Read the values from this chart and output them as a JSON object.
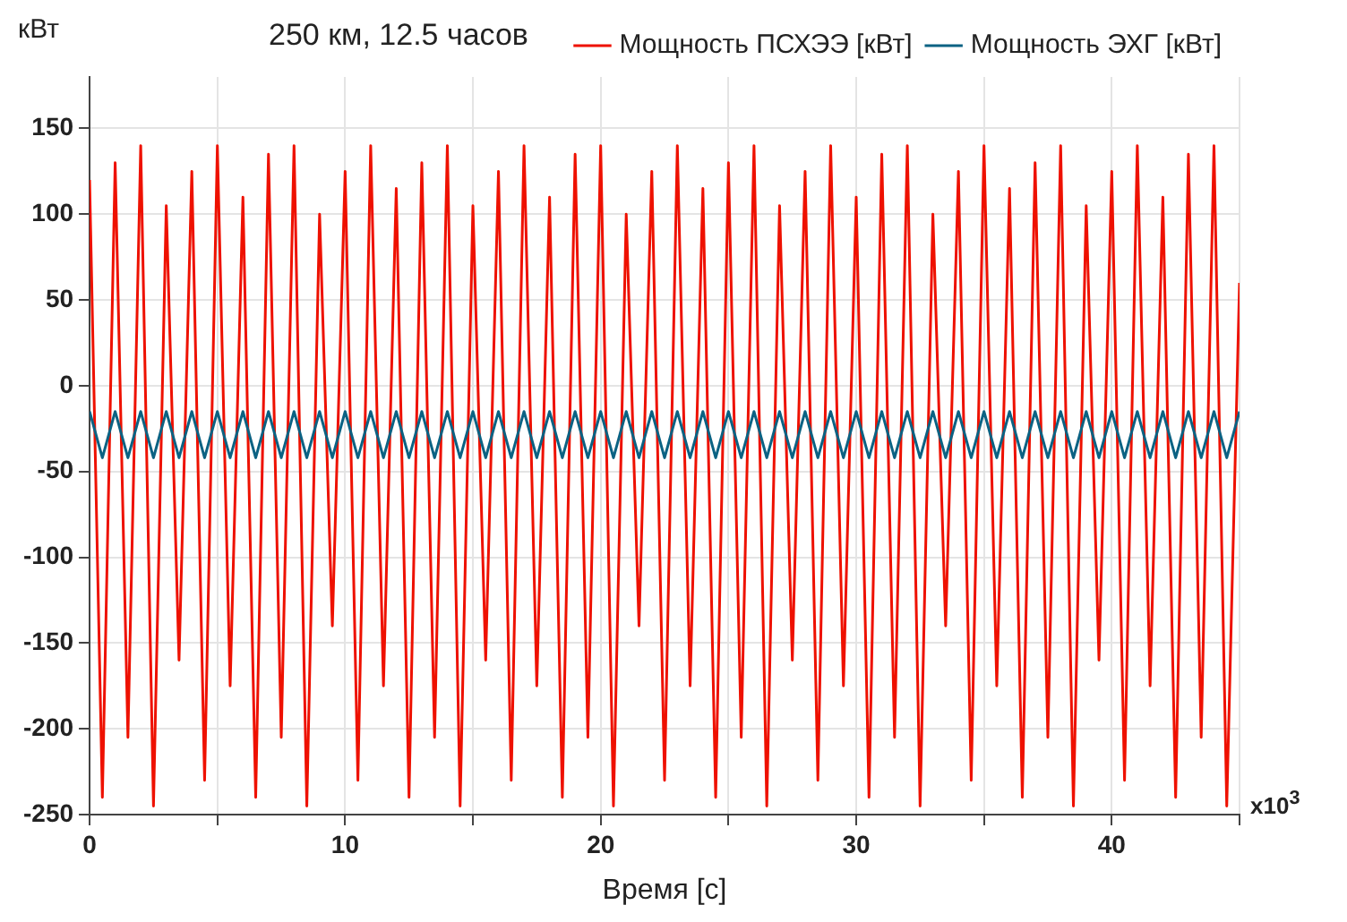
{
  "chart_data": {
    "type": "line",
    "title": "250 км, 12.5 часов",
    "xlabel": "Время [с]",
    "ylabel": "кВт",
    "annotations": [
      "x10$^{3}$"
    ],
    "xlim": [
      0,
      45
    ],
    "xticks": [
      0,
      {
        "value": 5,
        "label": null
      },
      10,
      {
        "value": 15,
        "label": null
      },
      20,
      {
        "value": 25,
        "label": null
      },
      30,
      {
        "value": 35,
        "label": null
      },
      40,
      {
        "value": 45,
        "label": null
      }
    ],
    "ylim": [
      -250,
      180
    ],
    "yticks": [
      -250,
      -200,
      -150,
      -100,
      -50,
      0,
      50,
      100,
      150
    ],
    "grid": true,
    "legend": "top right",
    "marker": "none",
    "line_style": "solid",
    "series": [
      {
        "name": "Мощность ПСХЭЭ [кВт]",
        "color": "#ee1100",
        "x": [
          0,
          0.5,
          1,
          1.5,
          2,
          2.5,
          3,
          3.5,
          4,
          4.5,
          5,
          5.5,
          6,
          6.5,
          7,
          7.5,
          8,
          8.5,
          9,
          9.5,
          10,
          10.5,
          11,
          11.5,
          12,
          12.5,
          13,
          13.5,
          14,
          14.5,
          15,
          15.5,
          16,
          16.5,
          17,
          17.5,
          18,
          18.5,
          19,
          19.5,
          20,
          20.5,
          21,
          21.5,
          22,
          22.5,
          23,
          23.5,
          24,
          24.5,
          25,
          25.5,
          26,
          26.5,
          27,
          27.5,
          28,
          28.5,
          29,
          29.5,
          30,
          30.5,
          31,
          31.5,
          32,
          32.5,
          33,
          33.5,
          34,
          34.5,
          35,
          35.5,
          36,
          36.5,
          37,
          37.5,
          38,
          38.5,
          39,
          39.5,
          40,
          40.5,
          41,
          41.5,
          42,
          42.5,
          43,
          43.5,
          44,
          44.5,
          45
        ],
        "values": [
          120,
          -240,
          130,
          -205,
          140,
          -245,
          105,
          -160,
          125,
          -230,
          140,
          -175,
          110,
          -240,
          135,
          -205,
          140,
          -245,
          100,
          -140,
          125,
          -230,
          140,
          -175,
          115,
          -240,
          130,
          -205,
          140,
          -245,
          105,
          -160,
          125,
          -230,
          140,
          -175,
          110,
          -240,
          135,
          -205,
          140,
          -245,
          100,
          -140,
          125,
          -230,
          140,
          -175,
          115,
          -240,
          130,
          -205,
          140,
          -245,
          105,
          -160,
          125,
          -230,
          140,
          -175,
          110,
          -240,
          135,
          -205,
          140,
          -245,
          100,
          -140,
          125,
          -230,
          140,
          -175,
          115,
          -240,
          130,
          -205,
          140,
          -245,
          105,
          -160,
          125,
          -230,
          140,
          -175,
          110,
          -240,
          135,
          -205,
          140,
          -245,
          60
        ]
      },
      {
        "name": "Мощность ЭХГ [кВт]",
        "color": "#0b6283",
        "x": [
          0,
          0.5,
          1,
          1.5,
          2,
          2.5,
          3,
          3.5,
          4,
          4.5,
          5,
          5.5,
          6,
          6.5,
          7,
          7.5,
          8,
          8.5,
          9,
          9.5,
          10,
          10.5,
          11,
          11.5,
          12,
          12.5,
          13,
          13.5,
          14,
          14.5,
          15,
          15.5,
          16,
          16.5,
          17,
          17.5,
          18,
          18.5,
          19,
          19.5,
          20,
          20.5,
          21,
          21.5,
          22,
          22.5,
          23,
          23.5,
          24,
          24.5,
          25,
          25.5,
          26,
          26.5,
          27,
          27.5,
          28,
          28.5,
          29,
          29.5,
          30,
          30.5,
          31,
          31.5,
          32,
          32.5,
          33,
          33.5,
          34,
          34.5,
          35,
          35.5,
          36,
          36.5,
          37,
          37.5,
          38,
          38.5,
          39,
          39.5,
          40,
          40.5,
          41,
          41.5,
          42,
          42.5,
          43,
          43.5,
          44,
          44.5,
          45
        ],
        "values": [
          -15,
          -42,
          -15,
          -42,
          -15,
          -42,
          -15,
          -42,
          -15,
          -42,
          -15,
          -42,
          -15,
          -42,
          -15,
          -42,
          -15,
          -42,
          -15,
          -42,
          -15,
          -42,
          -15,
          -42,
          -15,
          -42,
          -15,
          -42,
          -15,
          -42,
          -15,
          -42,
          -15,
          -42,
          -15,
          -42,
          -15,
          -42,
          -15,
          -42,
          -15,
          -42,
          -15,
          -42,
          -15,
          -42,
          -15,
          -42,
          -15,
          -42,
          -15,
          -42,
          -15,
          -42,
          -15,
          -42,
          -15,
          -42,
          -15,
          -42,
          -15,
          -42,
          -15,
          -42,
          -15,
          -42,
          -15,
          -42,
          -15,
          -42,
          -15,
          -42,
          -15,
          -42,
          -15,
          -42,
          -15,
          -42,
          -15,
          -42,
          -15,
          -42,
          -15,
          -42,
          -15,
          -42,
          -15,
          -42,
          -15,
          -42,
          -15
        ]
      }
    ]
  }
}
